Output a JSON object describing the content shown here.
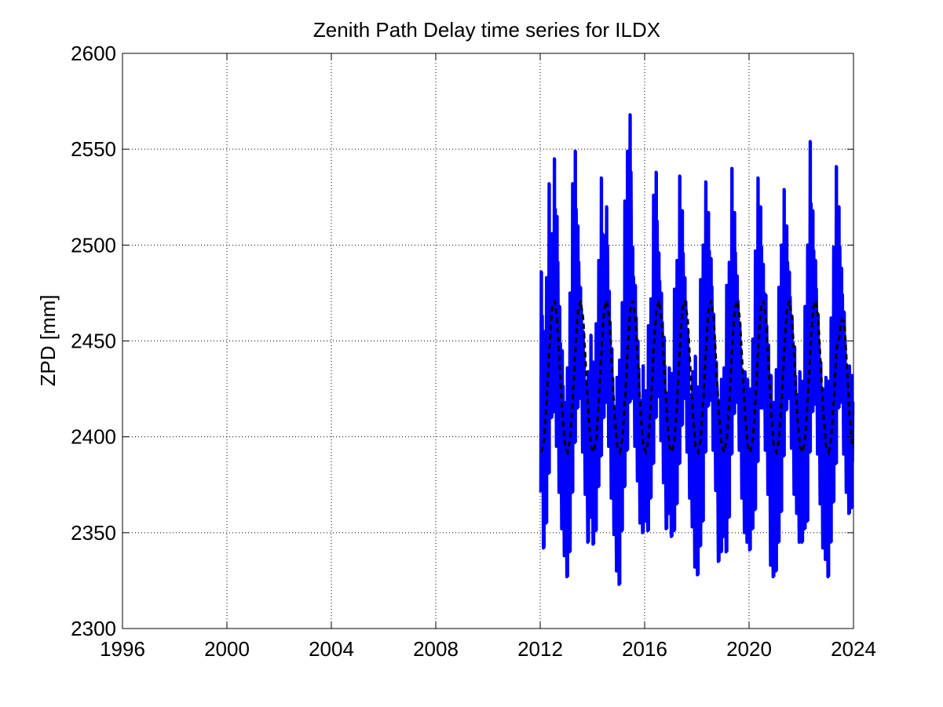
{
  "chart_data": {
    "type": "line",
    "title": "Zenith Path Delay time series for ILDX",
    "xlabel": "",
    "ylabel": "ZPD [mm]",
    "xlim": [
      1996,
      2024
    ],
    "ylim": [
      2300,
      2600
    ],
    "xticks": [
      1996,
      2000,
      2004,
      2008,
      2012,
      2016,
      2020,
      2024
    ],
    "yticks": [
      2300,
      2350,
      2400,
      2450,
      2500,
      2550,
      2600
    ],
    "grid": true,
    "legend": "none",
    "series": [
      {
        "role": "observed",
        "color": "#0000ff",
        "style": "solid",
        "x": [
          2012.05,
          2012.15,
          2012.25,
          2012.35,
          2012.45,
          2012.55,
          2012.65,
          2012.75,
          2012.85,
          2012.95,
          2013.05,
          2013.15,
          2013.25,
          2013.35,
          2013.45,
          2013.55,
          2013.65,
          2013.75,
          2013.85,
          2013.95,
          2014.05,
          2014.15,
          2014.25,
          2014.35,
          2014.45,
          2014.55,
          2014.65,
          2014.75,
          2014.85,
          2014.95,
          2015.05,
          2015.15,
          2015.25,
          2015.35,
          2015.45,
          2015.55,
          2015.65,
          2015.75,
          2015.85,
          2015.95,
          2016.05,
          2016.15,
          2016.25,
          2016.35,
          2016.45,
          2016.55,
          2016.65,
          2016.75,
          2016.85,
          2016.95,
          2017.05,
          2017.15,
          2017.25,
          2017.35,
          2017.45,
          2017.55,
          2017.65,
          2017.75,
          2017.85,
          2017.95,
          2018.05,
          2018.15,
          2018.25,
          2018.35,
          2018.45,
          2018.55,
          2018.65,
          2018.75,
          2018.85,
          2018.95,
          2019.05,
          2019.15,
          2019.25,
          2019.35,
          2019.45,
          2019.55,
          2019.65,
          2019.75,
          2019.85,
          2019.95,
          2020.05,
          2020.15,
          2020.25,
          2020.35,
          2020.45,
          2020.55,
          2020.65,
          2020.75,
          2020.85,
          2020.95,
          2021.05,
          2021.15,
          2021.25,
          2021.35,
          2021.45,
          2021.55,
          2021.65,
          2021.75,
          2021.85,
          2021.95,
          2022.05,
          2022.15,
          2022.25,
          2022.35,
          2022.45,
          2022.55,
          2022.65,
          2022.75,
          2022.85,
          2022.95,
          2023.05,
          2023.15,
          2023.25,
          2023.35,
          2023.45,
          2023.55,
          2023.65,
          2023.75,
          2023.85,
          2023.95
        ],
        "y_min": [
          2371,
          2342,
          2355,
          2381,
          2410,
          2413,
          2395,
          2371,
          2352,
          2338,
          2327,
          2340,
          2371,
          2397,
          2415,
          2420,
          2392,
          2370,
          2345,
          2358,
          2344,
          2351,
          2374,
          2390,
          2410,
          2418,
          2395,
          2368,
          2349,
          2330,
          2323,
          2351,
          2374,
          2393,
          2418,
          2420,
          2395,
          2377,
          2355,
          2350,
          2356,
          2351,
          2368,
          2386,
          2410,
          2421,
          2398,
          2376,
          2352,
          2360,
          2348,
          2351,
          2365,
          2386,
          2406,
          2420,
          2392,
          2368,
          2353,
          2332,
          2328,
          2343,
          2356,
          2392,
          2416,
          2419,
          2393,
          2372,
          2335,
          2340,
          2348,
          2340,
          2358,
          2391,
          2412,
          2418,
          2393,
          2368,
          2350,
          2345,
          2341,
          2352,
          2362,
          2387,
          2415,
          2415,
          2393,
          2370,
          2333,
          2327,
          2330,
          2345,
          2361,
          2390,
          2414,
          2420,
          2394,
          2370,
          2360,
          2345,
          2345,
          2352,
          2356,
          2392,
          2413,
          2417,
          2391,
          2365,
          2342,
          2336,
          2327,
          2345,
          2366,
          2386,
          2415,
          2418,
          2391,
          2371,
          2360,
          2363
        ],
        "y_max": [
          2486,
          2455,
          2483,
          2532,
          2506,
          2545,
          2515,
          2468,
          2445,
          2418,
          2436,
          2475,
          2532,
          2549,
          2510,
          2478,
          2455,
          2429,
          2434,
          2453,
          2439,
          2459,
          2492,
          2535,
          2505,
          2520,
          2476,
          2446,
          2414,
          2431,
          2440,
          2470,
          2523,
          2549,
          2568,
          2499,
          2479,
          2450,
          2419,
          2437,
          2424,
          2458,
          2472,
          2526,
          2538,
          2496,
          2475,
          2452,
          2423,
          2436,
          2433,
          2477,
          2492,
          2536,
          2518,
          2483,
          2456,
          2422,
          2434,
          2442,
          2426,
          2482,
          2500,
          2533,
          2517,
          2493,
          2464,
          2439,
          2419,
          2430,
          2436,
          2479,
          2491,
          2540,
          2517,
          2484,
          2459,
          2432,
          2434,
          2430,
          2425,
          2451,
          2497,
          2535,
          2520,
          2490,
          2474,
          2448,
          2432,
          2418,
          2435,
          2478,
          2500,
          2529,
          2510,
          2486,
          2463,
          2447,
          2422,
          2434,
          2429,
          2468,
          2500,
          2554,
          2518,
          2492,
          2464,
          2439,
          2425,
          2431,
          2429,
          2462,
          2499,
          2541,
          2520,
          2488,
          2465,
          2436,
          2437,
          2432
        ]
      },
      {
        "role": "model",
        "color": "#000000",
        "style": "dashed",
        "x": [
          2012.05,
          2012.15,
          2012.25,
          2012.35,
          2012.45,
          2012.55,
          2012.65,
          2012.75,
          2012.85,
          2012.95,
          2013.05,
          2013.15,
          2013.25,
          2013.35,
          2013.45,
          2013.55,
          2013.65,
          2013.75,
          2013.85,
          2013.95,
          2014.05,
          2014.15,
          2014.25,
          2014.35,
          2014.45,
          2014.55,
          2014.65,
          2014.75,
          2014.85,
          2014.95,
          2015.05,
          2015.15,
          2015.25,
          2015.35,
          2015.45,
          2015.55,
          2015.65,
          2015.75,
          2015.85,
          2015.95,
          2016.05,
          2016.15,
          2016.25,
          2016.35,
          2016.45,
          2016.55,
          2016.65,
          2016.75,
          2016.85,
          2016.95,
          2017.05,
          2017.15,
          2017.25,
          2017.35,
          2017.45,
          2017.55,
          2017.65,
          2017.75,
          2017.85,
          2017.95,
          2018.05,
          2018.15,
          2018.25,
          2018.35,
          2018.45,
          2018.55,
          2018.65,
          2018.75,
          2018.85,
          2018.95,
          2019.05,
          2019.15,
          2019.25,
          2019.35,
          2019.45,
          2019.55,
          2019.65,
          2019.75,
          2019.85,
          2019.95,
          2020.05,
          2020.15,
          2020.25,
          2020.35,
          2020.45,
          2020.55,
          2020.65,
          2020.75,
          2020.85,
          2020.95,
          2021.05,
          2021.15,
          2021.25,
          2021.35,
          2021.45,
          2021.55,
          2021.65,
          2021.75,
          2021.85,
          2021.95,
          2022.05,
          2022.15,
          2022.25,
          2022.35,
          2022.45,
          2022.55,
          2022.65,
          2022.75,
          2022.85,
          2022.95,
          2023.05,
          2023.15,
          2023.25,
          2023.35,
          2023.45,
          2023.55,
          2023.65,
          2023.75,
          2023.85,
          2023.95
        ],
        "y": [
          2392,
          2399,
          2420,
          2446,
          2467,
          2471,
          2461,
          2436,
          2411,
          2395,
          2392,
          2399,
          2420,
          2446,
          2467,
          2471,
          2461,
          2436,
          2411,
          2395,
          2392,
          2399,
          2420,
          2446,
          2467,
          2471,
          2461,
          2436,
          2411,
          2395,
          2392,
          2399,
          2420,
          2446,
          2467,
          2471,
          2461,
          2436,
          2411,
          2395,
          2392,
          2399,
          2420,
          2446,
          2467,
          2471,
          2461,
          2436,
          2411,
          2395,
          2392,
          2399,
          2420,
          2446,
          2467,
          2471,
          2461,
          2436,
          2411,
          2395,
          2392,
          2399,
          2420,
          2446,
          2467,
          2471,
          2461,
          2436,
          2411,
          2395,
          2392,
          2399,
          2420,
          2446,
          2467,
          2471,
          2461,
          2436,
          2411,
          2395,
          2392,
          2399,
          2420,
          2446,
          2467,
          2471,
          2461,
          2436,
          2411,
          2395,
          2392,
          2399,
          2420,
          2446,
          2467,
          2471,
          2461,
          2436,
          2411,
          2395,
          2392,
          2399,
          2420,
          2446,
          2467,
          2471,
          2461,
          2436,
          2411,
          2395,
          2392,
          2399,
          2420,
          2446,
          2452,
          2461,
          2460,
          2436,
          2411,
          2395
        ]
      }
    ]
  }
}
